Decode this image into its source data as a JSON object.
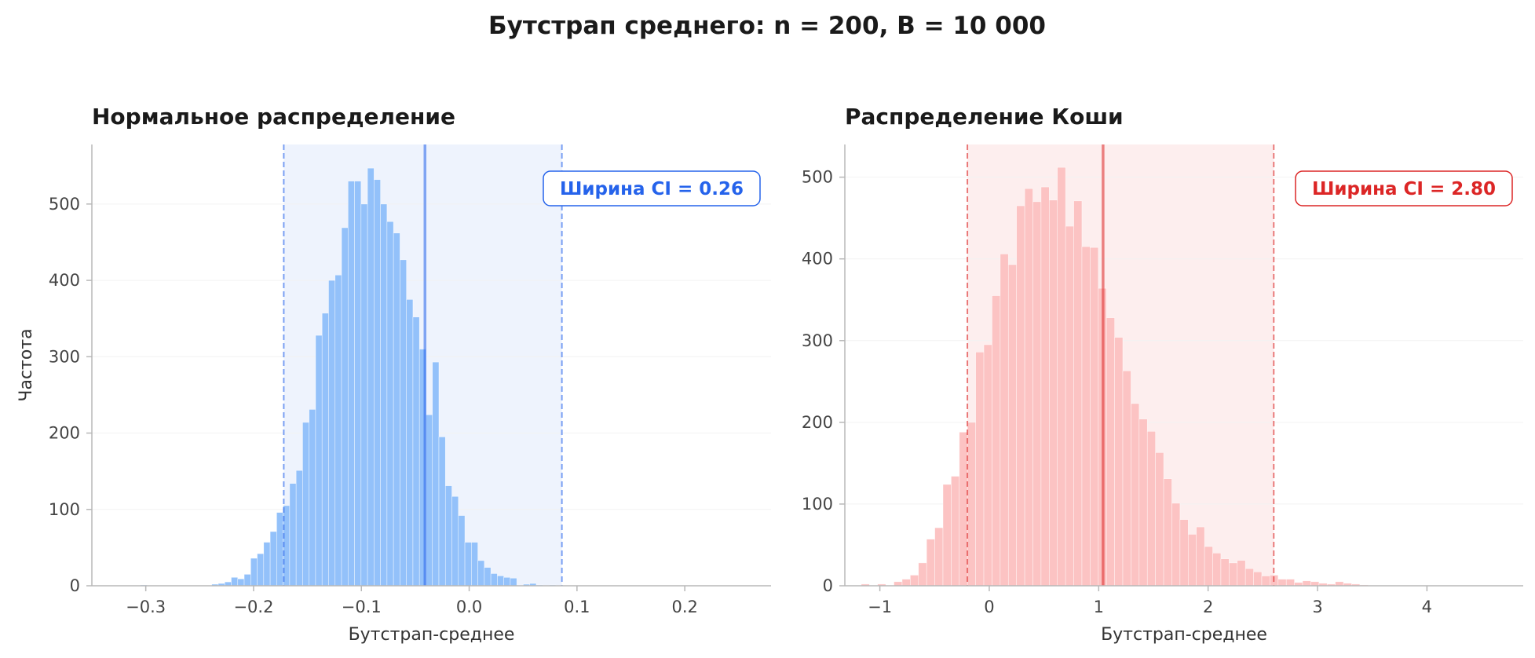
{
  "figure": {
    "title": "Бутстрап среднего: n = 200, B = 10 000"
  },
  "colors": {
    "normal_bar": "#93c1fa",
    "normal_accent": "#2563eb",
    "normal_shade": "#eef3fd",
    "cauchy_bar": "#fcc3c3",
    "cauchy_accent": "#dc2626",
    "cauchy_shade": "#fdeeee",
    "axis": "#b8b8b8",
    "grid": "#f2f2f2",
    "tick_text": "#444444",
    "title_text": "#1a1a1a"
  },
  "chart_data": [
    {
      "type": "bar",
      "title": "Нормальное распределение",
      "xlabel": "Бутстрап-среднее",
      "ylabel": "Частота",
      "xlim": [
        -0.35,
        0.28
      ],
      "ylim": [
        0,
        578
      ],
      "xticks": [
        -0.3,
        -0.2,
        -0.1,
        0.0,
        0.1,
        0.2
      ],
      "xtick_labels": [
        "−0.3",
        "−0.2",
        "−0.1",
        "0.0",
        "0.1",
        "0.2"
      ],
      "yticks": [
        0,
        100,
        200,
        300,
        400,
        500
      ],
      "ytick_labels": [
        "0",
        "100",
        "200",
        "300",
        "400",
        "500"
      ],
      "grid": true,
      "bin_start": -0.305,
      "bin_width": 0.00602,
      "values": [
        1,
        0,
        0,
        0,
        0,
        0,
        0,
        0,
        0,
        0,
        0,
        2,
        3,
        5,
        11,
        9,
        15,
        36,
        42,
        57,
        71,
        96,
        105,
        134,
        151,
        214,
        231,
        328,
        357,
        400,
        407,
        469,
        530,
        530,
        500,
        547,
        532,
        500,
        477,
        462,
        427,
        375,
        352,
        310,
        224,
        293,
        195,
        131,
        117,
        92,
        57,
        57,
        33,
        24,
        16,
        13,
        11,
        10,
        0,
        2,
        3,
        1,
        0,
        1,
        0
      ],
      "mean": -0.041,
      "ci": [
        -0.172,
        0.086
      ],
      "annotation": "Ширина CI = 0.26"
    },
    {
      "type": "bar",
      "title": "Распределение Коши",
      "xlabel": "Бутстрап-среднее",
      "ylabel": "",
      "xlim": [
        -1.32,
        4.88
      ],
      "ylim": [
        0,
        540
      ],
      "xticks": [
        -1,
        0,
        1,
        2,
        3,
        4
      ],
      "xtick_labels": [
        "−1",
        "0",
        "1",
        "2",
        "3",
        "4"
      ],
      "yticks": [
        0,
        100,
        200,
        300,
        400,
        500
      ],
      "ytick_labels": [
        "0",
        "100",
        "200",
        "300",
        "400",
        "500"
      ],
      "grid": true,
      "bin_start": -1.17,
      "bin_width": 0.0747,
      "values": [
        2,
        0,
        2,
        0,
        5,
        8,
        13,
        28,
        57,
        71,
        124,
        134,
        188,
        200,
        286,
        295,
        355,
        406,
        393,
        465,
        486,
        470,
        488,
        472,
        512,
        440,
        471,
        415,
        414,
        364,
        328,
        304,
        263,
        223,
        204,
        189,
        163,
        131,
        101,
        81,
        63,
        72,
        48,
        40,
        33,
        28,
        31,
        21,
        17,
        12,
        13,
        8,
        8,
        4,
        6,
        5,
        3,
        2,
        5,
        3,
        2,
        1,
        0,
        0
      ],
      "mean": 1.04,
      "ci": [
        -0.2,
        2.6
      ],
      "annotation": "Ширина CI = 2.80"
    }
  ]
}
